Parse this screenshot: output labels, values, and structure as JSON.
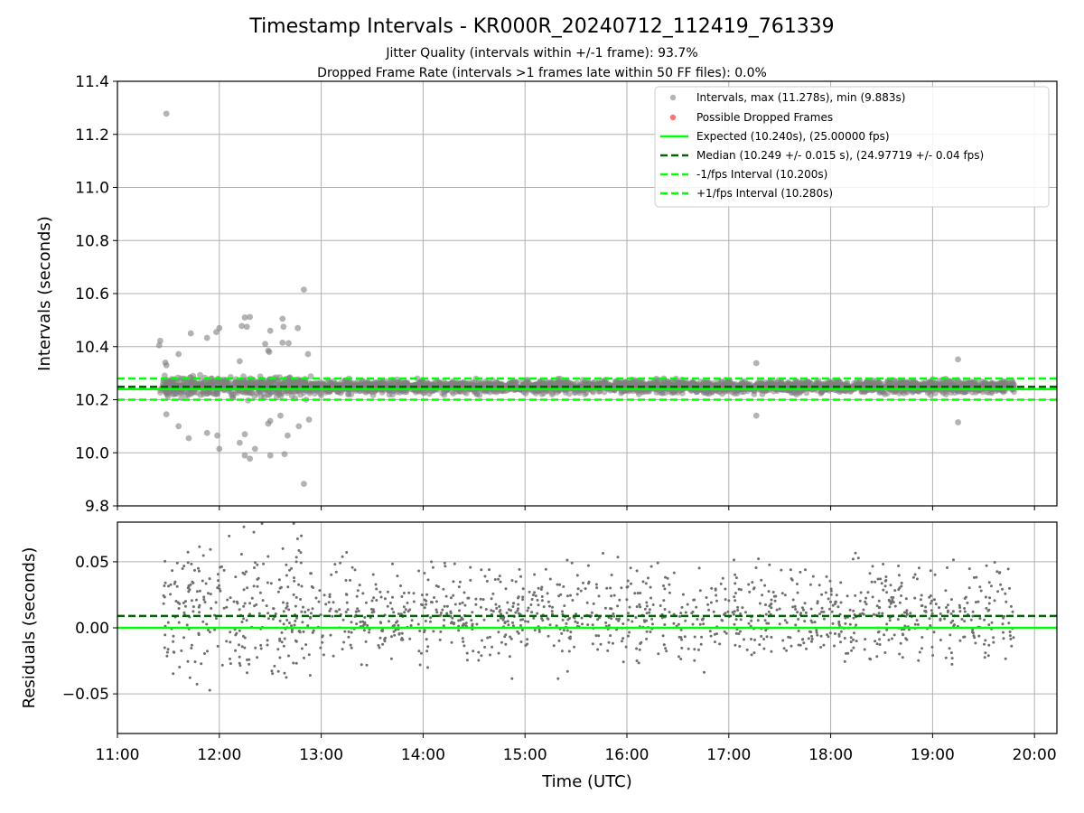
{
  "chart_data": [
    {
      "type": "scatter",
      "title": "Timestamp Intervals - KR000R_20240712_112419_761339",
      "subtitle_1": "Jitter Quality (intervals within +/-1 frame): 93.7%",
      "subtitle_2": "Dropped Frame Rate (intervals >1 frames late within 50 FF files): 0.0%",
      "xlabel": "",
      "ylabel": "Intervals (seconds)",
      "xlim_hours": [
        11.0,
        20.22
      ],
      "ylim": [
        9.8,
        11.4
      ],
      "yticks": [
        9.8,
        10.0,
        10.2,
        10.4,
        10.6,
        10.8,
        11.0,
        11.2,
        11.4
      ],
      "ytick_labels": [
        "9.8",
        "10.0",
        "10.2",
        "10.4",
        "10.6",
        "10.8",
        "11.0",
        "11.2",
        "11.4"
      ],
      "grid": true,
      "legend_position": "top-right",
      "legend": [
        "Intervals, max (11.278s), min (9.883s)",
        "Possible Dropped Frames",
        "Expected (10.240s), (25.00000 fps)",
        "Median (10.249 +/- 0.015 s), (24.97719 +/- 0.04 fps)",
        "-1/fps Interval (10.200s)",
        "+1/fps Interval (10.280s)"
      ],
      "series": [
        {
          "name": "Intervals",
          "time_range_hours": [
            11.42,
            19.8
          ],
          "points_approx": 3000,
          "max": 11.278,
          "min": 9.883
        },
        {
          "name": "Possible Dropped Frames",
          "values": []
        },
        {
          "name": "Expected",
          "value": 10.24
        },
        {
          "name": "Median",
          "value": 10.249
        },
        {
          "name": "-1/fps Interval",
          "value": 10.2
        },
        {
          "name": "+1/fps Interval",
          "value": 10.28
        }
      ],
      "outliers": [
        {
          "x": 11.48,
          "y": 11.278
        },
        {
          "x": 12.83,
          "y": 10.615
        },
        {
          "x": 12.83,
          "y": 9.883
        },
        {
          "x": 12.25,
          "y": 10.51
        },
        {
          "x": 12.3,
          "y": 10.512
        },
        {
          "x": 12.62,
          "y": 10.505
        },
        {
          "x": 12.63,
          "y": 10.475
        },
        {
          "x": 12.22,
          "y": 10.478
        },
        {
          "x": 12.27,
          "y": 10.475
        },
        {
          "x": 12.77,
          "y": 10.47
        },
        {
          "x": 12.0,
          "y": 10.47
        },
        {
          "x": 11.97,
          "y": 10.455
        },
        {
          "x": 12.5,
          "y": 10.46
        },
        {
          "x": 11.88,
          "y": 10.433
        },
        {
          "x": 11.72,
          "y": 10.45
        },
        {
          "x": 11.42,
          "y": 10.422
        },
        {
          "x": 11.41,
          "y": 10.405
        },
        {
          "x": 12.62,
          "y": 10.415
        },
        {
          "x": 12.68,
          "y": 10.413
        },
        {
          "x": 12.45,
          "y": 10.41
        },
        {
          "x": 12.48,
          "y": 10.385
        },
        {
          "x": 12.49,
          "y": 10.38
        },
        {
          "x": 11.6,
          "y": 10.372
        },
        {
          "x": 12.87,
          "y": 10.372
        },
        {
          "x": 12.2,
          "y": 10.345
        },
        {
          "x": 11.47,
          "y": 10.34
        },
        {
          "x": 11.48,
          "y": 10.33
        },
        {
          "x": 17.27,
          "y": 10.338
        },
        {
          "x": 19.25,
          "y": 10.352
        },
        {
          "x": 11.48,
          "y": 10.145
        },
        {
          "x": 11.6,
          "y": 10.1
        },
        {
          "x": 11.7,
          "y": 10.055
        },
        {
          "x": 11.88,
          "y": 10.075
        },
        {
          "x": 11.98,
          "y": 10.065
        },
        {
          "x": 12.0,
          "y": 10.015
        },
        {
          "x": 12.2,
          "y": 10.038
        },
        {
          "x": 12.25,
          "y": 10.07
        },
        {
          "x": 12.25,
          "y": 9.99
        },
        {
          "x": 12.3,
          "y": 9.978
        },
        {
          "x": 12.35,
          "y": 10.015
        },
        {
          "x": 12.48,
          "y": 10.11
        },
        {
          "x": 12.5,
          "y": 9.99
        },
        {
          "x": 12.5,
          "y": 10.12
        },
        {
          "x": 12.6,
          "y": 10.14
        },
        {
          "x": 12.64,
          "y": 9.995
        },
        {
          "x": 12.67,
          "y": 10.065
        },
        {
          "x": 12.78,
          "y": 10.1
        },
        {
          "x": 12.88,
          "y": 10.125
        },
        {
          "x": 17.27,
          "y": 10.14
        },
        {
          "x": 19.25,
          "y": 10.115
        }
      ]
    },
    {
      "type": "scatter",
      "xlabel": "Time (UTC)",
      "ylabel": "Residuals (seconds)",
      "xlim_hours": [
        11.0,
        20.22
      ],
      "ylim": [
        -0.08,
        0.08
      ],
      "yticks": [
        -0.05,
        0.0,
        0.05
      ],
      "ytick_labels": [
        "−0.05",
        "0.00",
        "0.05"
      ],
      "xticks_hours": [
        11,
        12,
        13,
        14,
        15,
        16,
        17,
        18,
        19,
        20
      ],
      "xtick_labels": [
        "11:00",
        "12:00",
        "13:00",
        "14:00",
        "15:00",
        "16:00",
        "17:00",
        "18:00",
        "19:00",
        "20:00"
      ],
      "grid": true,
      "series": [
        {
          "name": "Residuals",
          "time_range_hours": [
            11.42,
            19.8
          ],
          "points_approx": 1400,
          "range": [
            -0.062,
            0.08
          ]
        },
        {
          "name": "Expected",
          "value": 0.0
        },
        {
          "name": "Median offset",
          "value": 0.009
        }
      ]
    }
  ],
  "colors": {
    "points": "#808080",
    "dropped": "#ff0000",
    "expected": "#00ff00",
    "median": "#006400",
    "fps_interval": "#00ff00",
    "grid": "#b0b0b0"
  }
}
